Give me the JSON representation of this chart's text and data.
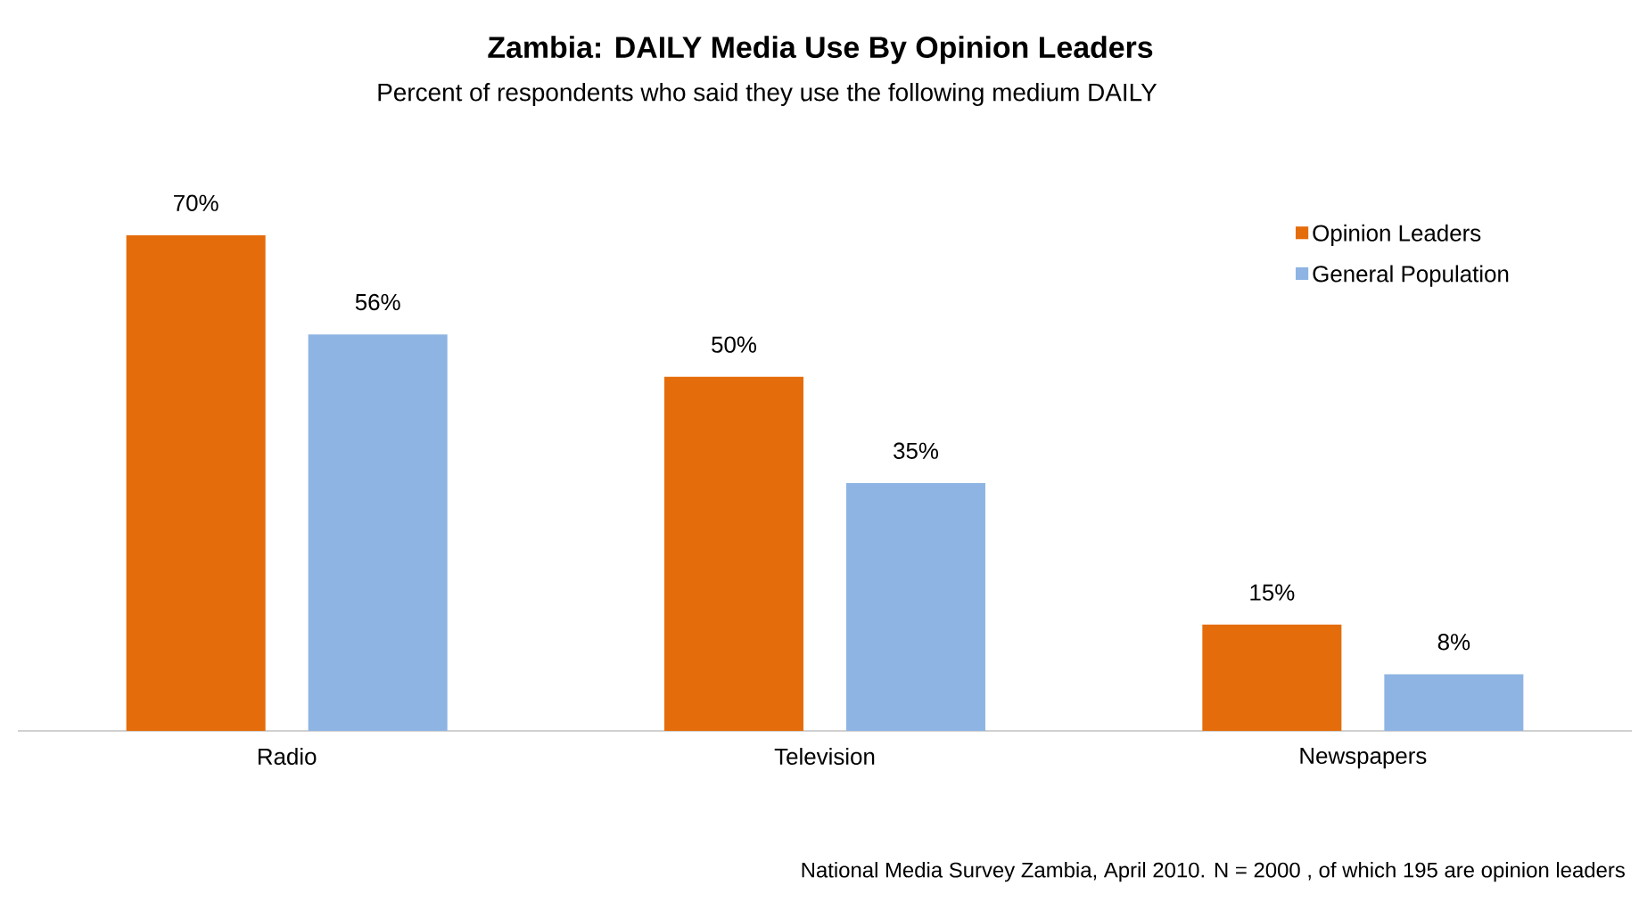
{
  "chart_data": {
    "type": "bar",
    "title": "Zambia: DAILY Media Use By Opinion Leaders",
    "subtitle": "Percent of respondents who said they use the following medium DAILY",
    "categories": [
      "Radio",
      "Television",
      "Newspapers"
    ],
    "series": [
      {
        "name": "Opinion Leaders",
        "color": "#e46c0a",
        "values": [
          70,
          50,
          15
        ],
        "value_labels": [
          "70%",
          "50%",
          "15%"
        ]
      },
      {
        "name": "General Population",
        "color": "#8eb4e3",
        "values": [
          56,
          35,
          8
        ],
        "value_labels": [
          "56%",
          "35%",
          "8%"
        ]
      }
    ],
    "legend": "top right",
    "annotations": [
      "National Media Survey Zambia, April 2010. N = 2000 , of which 195 are opinion leaders"
    ]
  }
}
